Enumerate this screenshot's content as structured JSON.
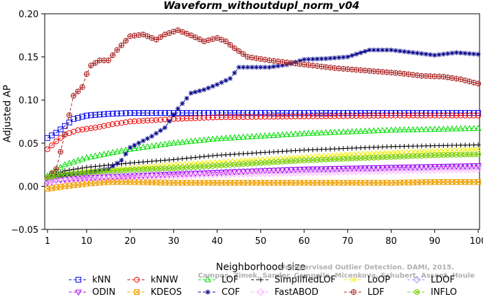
{
  "chart_data": {
    "type": "line",
    "title": "Waveform_withoutdupl_norm_v04",
    "xlabel": "Neighborhood size",
    "ylabel": "Adjusted AP",
    "xlim": [
      1,
      100
    ],
    "ylim": [
      -0.05,
      0.2
    ],
    "xticks": [
      1,
      10,
      20,
      30,
      40,
      50,
      60,
      70,
      80,
      90,
      100
    ],
    "yticks": [
      -0.05,
      0.0,
      0.05,
      0.1,
      0.15,
      0.2
    ],
    "ytick_labels": [
      "−0.05",
      "0.00",
      "0.05",
      "0.10",
      "0.15",
      "0.20"
    ],
    "grid": false,
    "legend_position": "bottom",
    "watermark": [
      "Unsupervised Outlier Detection. DAMI, 2015.",
      "Campos, Zimek, Sander, Campello, Micenkova, Schubert, Assent, Houle"
    ],
    "series": [
      {
        "name": "kNN",
        "color": "#0000ee",
        "marker": "square",
        "points": [
          [
            1,
            0.056
          ],
          [
            3,
            0.062
          ],
          [
            5,
            0.07
          ],
          [
            7,
            0.078
          ],
          [
            10,
            0.082
          ],
          [
            15,
            0.084
          ],
          [
            20,
            0.085
          ],
          [
            30,
            0.085
          ],
          [
            40,
            0.085
          ],
          [
            60,
            0.085
          ],
          [
            80,
            0.085
          ],
          [
            100,
            0.085
          ]
        ]
      },
      {
        "name": "kNNW",
        "color": "#ee0000",
        "marker": "circle",
        "points": [
          [
            1,
            0.043
          ],
          [
            3,
            0.052
          ],
          [
            5,
            0.06
          ],
          [
            8,
            0.065
          ],
          [
            12,
            0.068
          ],
          [
            16,
            0.072
          ],
          [
            20,
            0.075
          ],
          [
            30,
            0.078
          ],
          [
            40,
            0.08
          ],
          [
            60,
            0.081
          ],
          [
            80,
            0.082
          ],
          [
            100,
            0.082
          ]
        ]
      },
      {
        "name": "LOF",
        "color": "#00dd00",
        "marker": "triangle-up",
        "points": [
          [
            1,
            0.012
          ],
          [
            5,
            0.025
          ],
          [
            10,
            0.033
          ],
          [
            20,
            0.043
          ],
          [
            30,
            0.05
          ],
          [
            40,
            0.055
          ],
          [
            50,
            0.058
          ],
          [
            60,
            0.061
          ],
          [
            70,
            0.063
          ],
          [
            80,
            0.065
          ],
          [
            90,
            0.066
          ],
          [
            100,
            0.067
          ]
        ]
      },
      {
        "name": "SimplifiedLOF",
        "color": "#000000",
        "marker": "plus",
        "points": [
          [
            1,
            0.01
          ],
          [
            5,
            0.018
          ],
          [
            10,
            0.022
          ],
          [
            20,
            0.027
          ],
          [
            30,
            0.031
          ],
          [
            40,
            0.036
          ],
          [
            50,
            0.039
          ],
          [
            60,
            0.042
          ],
          [
            70,
            0.044
          ],
          [
            80,
            0.046
          ],
          [
            90,
            0.047
          ],
          [
            100,
            0.048
          ]
        ]
      },
      {
        "name": "LoOP",
        "color": "#eeee00",
        "marker": "x",
        "points": [
          [
            1,
            0.008
          ],
          [
            5,
            0.013
          ],
          [
            10,
            0.017
          ],
          [
            20,
            0.021
          ],
          [
            30,
            0.025
          ],
          [
            40,
            0.028
          ],
          [
            50,
            0.031
          ],
          [
            60,
            0.034
          ],
          [
            70,
            0.037
          ],
          [
            80,
            0.039
          ],
          [
            90,
            0.041
          ],
          [
            100,
            0.043
          ]
        ]
      },
      {
        "name": "LDOF",
        "color": "#9999ff",
        "marker": "diamond",
        "points": [
          [
            1,
            0.008
          ],
          [
            10,
            0.011
          ],
          [
            20,
            0.013
          ],
          [
            30,
            0.015
          ],
          [
            40,
            0.016
          ],
          [
            50,
            0.018
          ],
          [
            60,
            0.019
          ],
          [
            70,
            0.02
          ],
          [
            80,
            0.021
          ],
          [
            90,
            0.022
          ],
          [
            100,
            0.023
          ]
        ]
      },
      {
        "name": "ODIN",
        "color": "#aa00ee",
        "marker": "triangle-down",
        "points": [
          [
            1,
            0.004
          ],
          [
            5,
            0.008
          ],
          [
            10,
            0.01
          ],
          [
            20,
            0.012
          ],
          [
            30,
            0.014
          ],
          [
            40,
            0.016
          ],
          [
            50,
            0.018
          ],
          [
            60,
            0.02
          ],
          [
            70,
            0.021
          ],
          [
            80,
            0.022
          ],
          [
            90,
            0.023
          ],
          [
            100,
            0.024
          ]
        ]
      },
      {
        "name": "KDEOS",
        "color": "#f0a000",
        "marker": "square-x",
        "points": [
          [
            1,
            -0.003
          ],
          [
            5,
            0.0
          ],
          [
            10,
            0.003
          ],
          [
            15,
            0.005
          ],
          [
            20,
            0.005
          ],
          [
            30,
            0.004
          ],
          [
            40,
            0.004
          ],
          [
            50,
            0.004
          ],
          [
            60,
            0.004
          ],
          [
            70,
            0.004
          ],
          [
            80,
            0.004
          ],
          [
            90,
            0.005
          ],
          [
            100,
            0.005
          ]
        ]
      },
      {
        "name": "COF",
        "color": "#000088",
        "marker": "asterisk",
        "points": [
          [
            1,
            0.01
          ],
          [
            5,
            0.013
          ],
          [
            10,
            0.016
          ],
          [
            15,
            0.02
          ],
          [
            18,
            0.03
          ],
          [
            20,
            0.045
          ],
          [
            25,
            0.058
          ],
          [
            28,
            0.068
          ],
          [
            31,
            0.09
          ],
          [
            34,
            0.108
          ],
          [
            37,
            0.112
          ],
          [
            40,
            0.118
          ],
          [
            43,
            0.125
          ],
          [
            45,
            0.138
          ],
          [
            48,
            0.138
          ],
          [
            52,
            0.138
          ],
          [
            56,
            0.141
          ],
          [
            60,
            0.147
          ],
          [
            65,
            0.148
          ],
          [
            70,
            0.15
          ],
          [
            75,
            0.158
          ],
          [
            80,
            0.158
          ],
          [
            85,
            0.155
          ],
          [
            90,
            0.152
          ],
          [
            95,
            0.155
          ],
          [
            100,
            0.153
          ]
        ]
      },
      {
        "name": "FastABOD",
        "color": "#ffaaff",
        "marker": "diamond",
        "points": [
          [
            1,
            0.006
          ],
          [
            10,
            0.009
          ],
          [
            20,
            0.011
          ],
          [
            30,
            0.012
          ],
          [
            40,
            0.014
          ],
          [
            50,
            0.015
          ],
          [
            60,
            0.016
          ],
          [
            70,
            0.017
          ],
          [
            80,
            0.018
          ],
          [
            90,
            0.019
          ],
          [
            100,
            0.02
          ]
        ]
      },
      {
        "name": "LDF",
        "color": "#aa2222",
        "marker": "circle-plus",
        "points": [
          [
            1,
            0.01
          ],
          [
            3,
            0.02
          ],
          [
            5,
            0.06
          ],
          [
            7,
            0.105
          ],
          [
            9,
            0.115
          ],
          [
            10,
            0.13
          ],
          [
            11,
            0.14
          ],
          [
            13,
            0.146
          ],
          [
            15,
            0.146
          ],
          [
            17,
            0.158
          ],
          [
            20,
            0.174
          ],
          [
            23,
            0.176
          ],
          [
            26,
            0.17
          ],
          [
            28,
            0.176
          ],
          [
            31,
            0.181
          ],
          [
            34,
            0.175
          ],
          [
            37,
            0.168
          ],
          [
            40,
            0.172
          ],
          [
            42,
            0.168
          ],
          [
            44,
            0.16
          ],
          [
            47,
            0.15
          ],
          [
            52,
            0.146
          ],
          [
            57,
            0.143
          ],
          [
            62,
            0.14
          ],
          [
            67,
            0.137
          ],
          [
            72,
            0.135
          ],
          [
            77,
            0.133
          ],
          [
            82,
            0.131
          ],
          [
            87,
            0.128
          ],
          [
            92,
            0.127
          ],
          [
            96,
            0.124
          ],
          [
            100,
            0.119
          ]
        ]
      },
      {
        "name": "INFLO",
        "color": "#77cc00",
        "marker": "circle-x",
        "points": [
          [
            1,
            0.01
          ],
          [
            5,
            0.014
          ],
          [
            10,
            0.016
          ],
          [
            20,
            0.019
          ],
          [
            30,
            0.021
          ],
          [
            40,
            0.024
          ],
          [
            50,
            0.027
          ],
          [
            60,
            0.03
          ],
          [
            70,
            0.032
          ],
          [
            80,
            0.034
          ],
          [
            90,
            0.036
          ],
          [
            100,
            0.037
          ]
        ]
      }
    ]
  }
}
